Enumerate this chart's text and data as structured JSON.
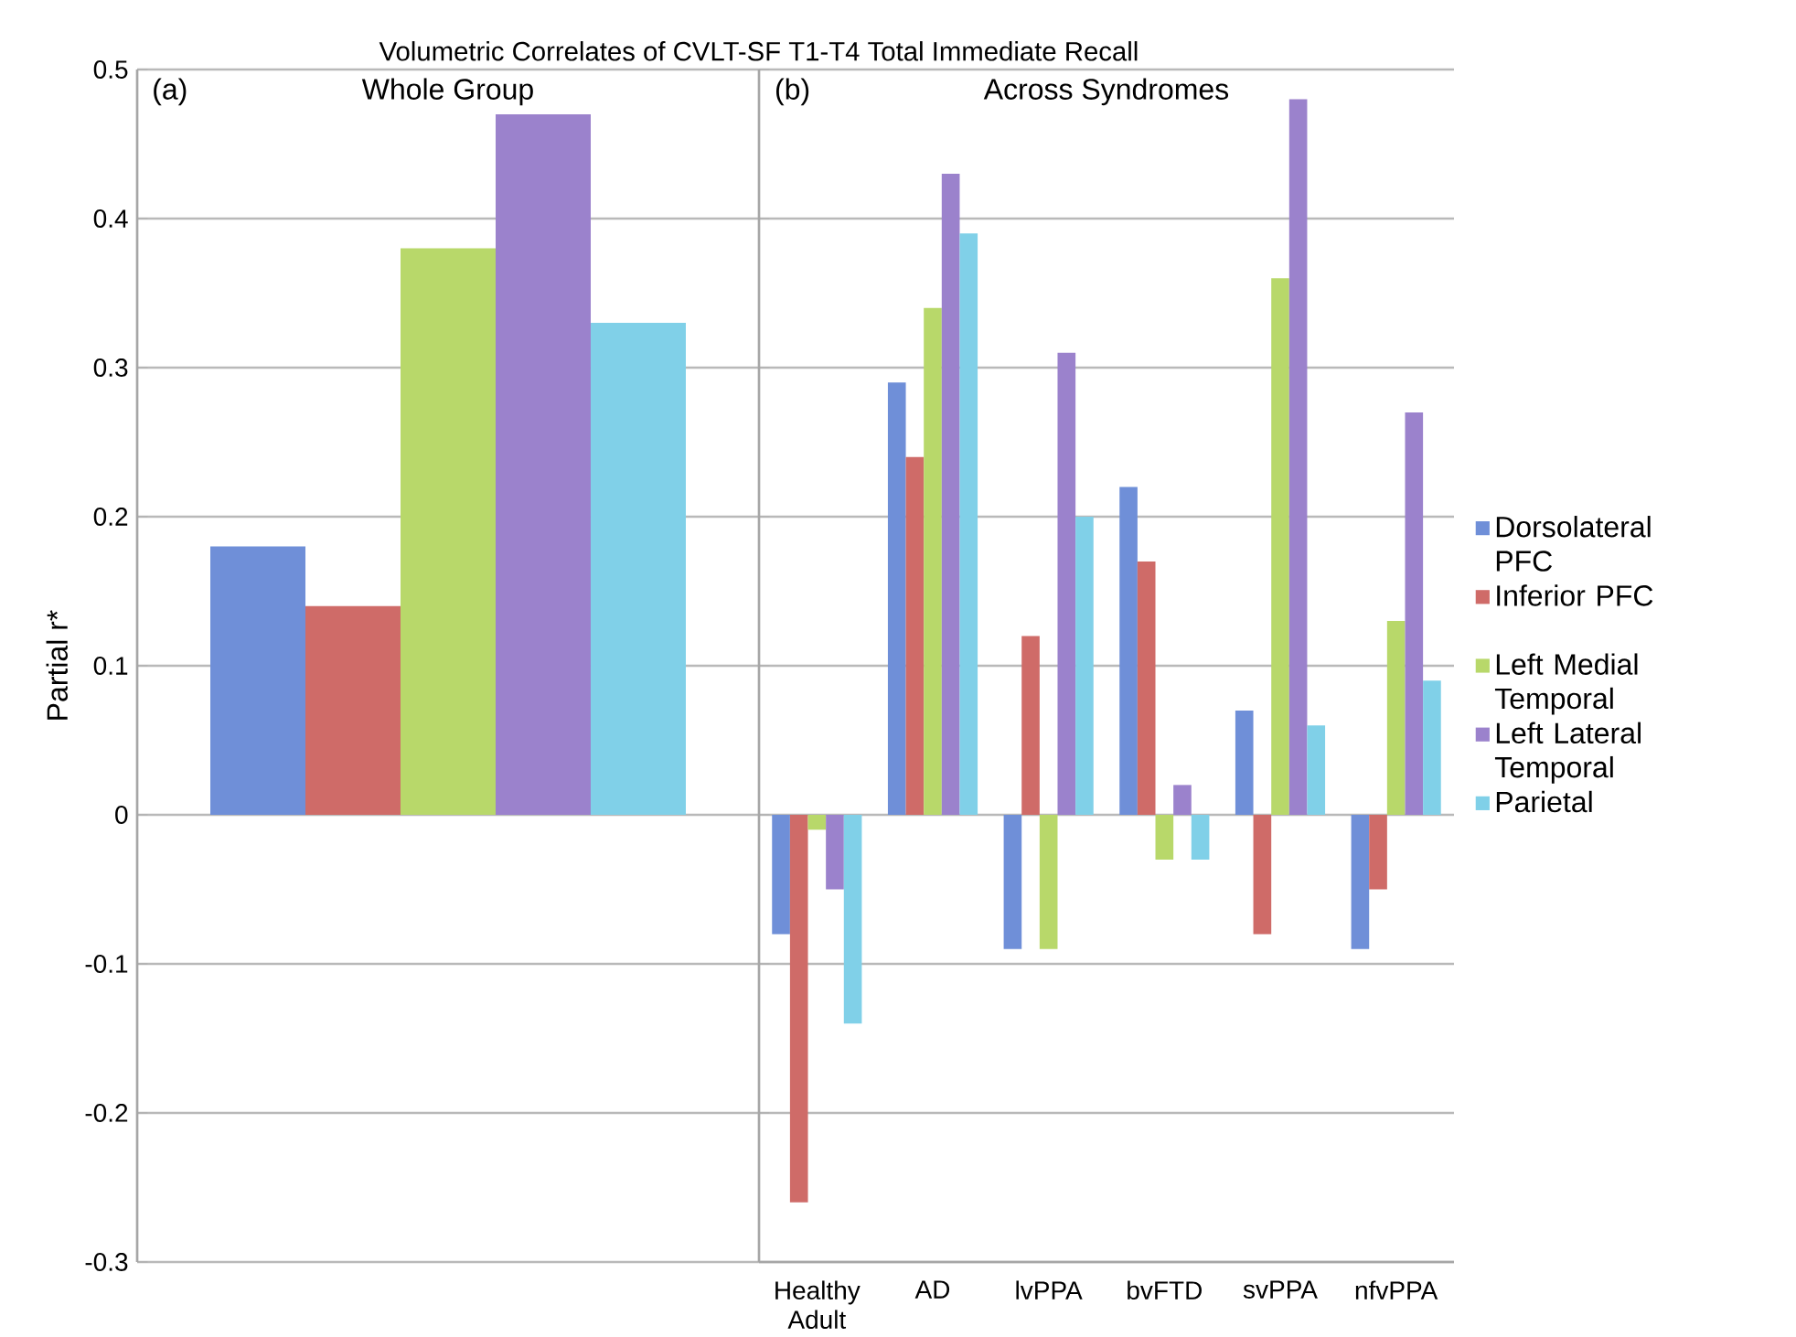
{
  "chart_data": [
    {
      "type": "bar",
      "title": "Volumetric Correlates of CVLT-SF T1-T4 Total Immediate Recall",
      "subtitle": "Whole Group",
      "annotations": [
        "(a)"
      ],
      "ylabel": "Partial r*",
      "categories": [
        null
      ],
      "series": [
        {
          "color": "#6f8fd8",
          "values": [
            0.18
          ]
        },
        {
          "color": "#cf6b68",
          "values": [
            0.14
          ]
        },
        {
          "color": "#b8d86a",
          "values": [
            0.38
          ]
        },
        {
          "color": "#9b82cc",
          "values": [
            0.47
          ]
        },
        {
          "color": "#80d0e8",
          "values": [
            0.33
          ]
        }
      ],
      "ylim": [
        -0.3,
        0.5
      ],
      "yticks": [
        -0.3,
        -0.2,
        -0.1,
        0,
        0.1,
        0.2,
        0.3,
        0.4,
        0.5
      ],
      "grid": "y",
      "tick_labels": "y"
    },
    {
      "type": "bar",
      "subtitle": "Across Syndromes",
      "annotations": [
        "(b)"
      ],
      "categories": [
        "Healthy Adult",
        "AD",
        "lvPPA",
        "bvFTD",
        "svPPA",
        "nfvPPA"
      ],
      "series": [
        {
          "name": "Dorsolateral PFC",
          "color": "#6f8fd8",
          "values": [
            -0.08,
            0.29,
            -0.09,
            0.22,
            0.07,
            -0.09
          ]
        },
        {
          "name": "Inferior PFC",
          "color": "#cf6b68",
          "values": [
            -0.26,
            0.24,
            0.12,
            0.17,
            -0.08,
            -0.05
          ]
        },
        {
          "name": "Left Medial Temporal",
          "color": "#b8d86a",
          "values": [
            -0.01,
            0.34,
            -0.09,
            -0.03,
            0.36,
            0.13
          ]
        },
        {
          "name": "Left Lateral Temporal",
          "color": "#9b82cc",
          "values": [
            -0.05,
            0.43,
            0.31,
            0.02,
            0.48,
            0.27
          ]
        },
        {
          "name": "Parietal",
          "color": "#80d0e8",
          "values": [
            -0.14,
            0.39,
            0.2,
            -0.03,
            0.06,
            0.09
          ]
        }
      ],
      "ylim": [
        -0.3,
        0.5
      ],
      "yticks": [
        -0.3,
        -0.2,
        -0.1,
        0,
        0.1,
        0.2,
        0.3,
        0.4,
        0.5
      ],
      "grid": "y",
      "tick_labels": "x",
      "legend": "right"
    }
  ]
}
